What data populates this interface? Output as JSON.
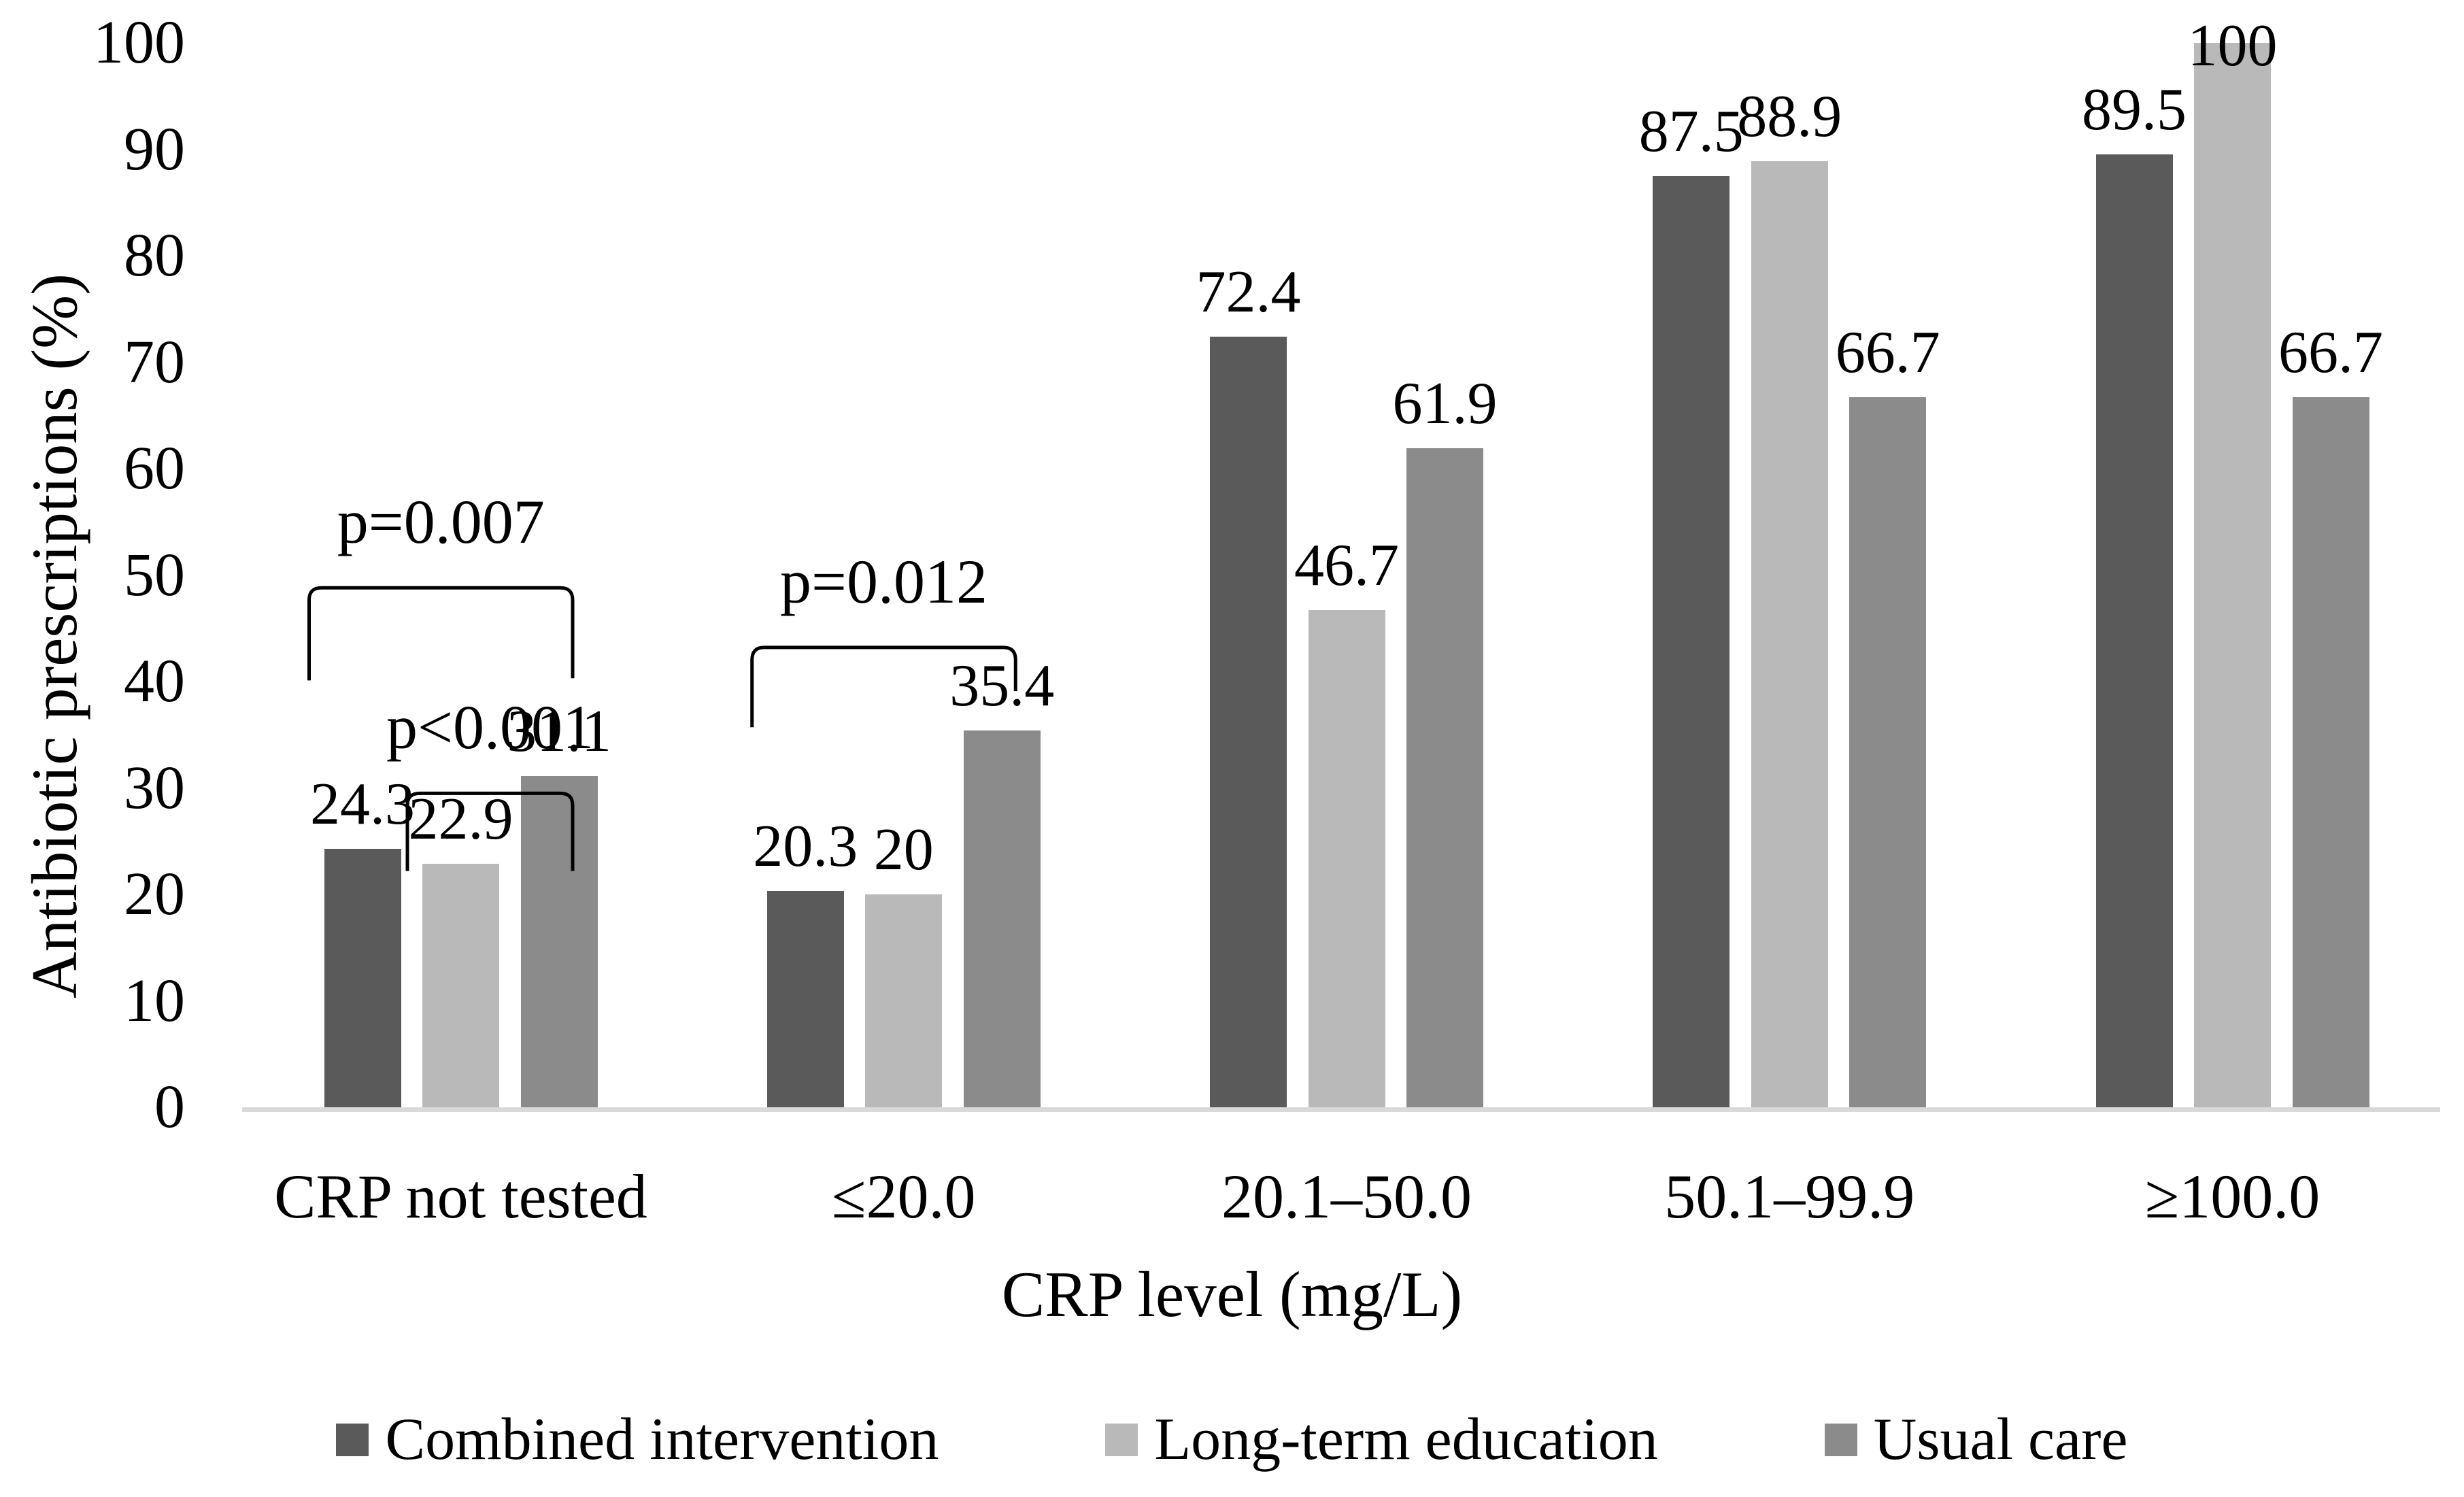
{
  "chart_data": {
    "type": "bar",
    "title": "",
    "xlabel": "CRP level (mg/L)",
    "ylabel": "Antibiotic prescriptions (%)",
    "categories": [
      "CRP not tested",
      "≤20.0",
      "20.1–50.0",
      "50.1–99.9",
      "≥100.0"
    ],
    "series": [
      {
        "name": "Combined intervention",
        "color": "#5a5a5a",
        "values": [
          24.3,
          20.3,
          72.4,
          87.5,
          89.5
        ],
        "value_labels": [
          "24.3",
          "20.3",
          "72.4",
          "87.5",
          "89.5"
        ]
      },
      {
        "name": "Long-term education",
        "color": "#b9b9b9",
        "values": [
          22.9,
          20,
          46.7,
          88.9,
          100
        ],
        "value_labels": [
          "22.9",
          "20",
          "46.7",
          "88.9",
          "100"
        ]
      },
      {
        "name": "Usual care",
        "color": "#8b8b8b",
        "values": [
          31.1,
          35.4,
          61.9,
          66.7,
          66.7
        ],
        "value_labels": [
          "31.1",
          "35.4",
          "61.9",
          "66.7",
          "66.7"
        ]
      }
    ],
    "ylim": [
      0,
      100
    ],
    "yticks": [
      0,
      10,
      20,
      30,
      40,
      50,
      60,
      70,
      80,
      90,
      100
    ],
    "grid": false,
    "legend_position": "bottom",
    "axis_line_color": "#d9d9d9",
    "text_color": "#000000",
    "annotations": [
      {
        "text": "p=0.007",
        "category_index": 0,
        "from_series": 0,
        "to_series": 2,
        "bracket_top_value": 48.8,
        "left_leg_bottom_value": 40.1,
        "right_leg_bottom_value": 40.3
      },
      {
        "text": "p<0.001",
        "category_index": 0,
        "from_series": 1,
        "to_series": 2,
        "bracket_top_value": 29.5,
        "left_leg_bottom_value": 22.2,
        "right_leg_bottom_value": 22.2
      },
      {
        "text": "p=0.012",
        "category_index": 1,
        "from_series": 0,
        "to_series": 2,
        "bracket_top_value": 43.2,
        "left_leg_bottom_value": 35.7,
        "right_leg_bottom_value": 39.1
      }
    ]
  },
  "legend": {
    "items": [
      "Combined intervention",
      "Long-term education",
      "Usual care"
    ]
  }
}
